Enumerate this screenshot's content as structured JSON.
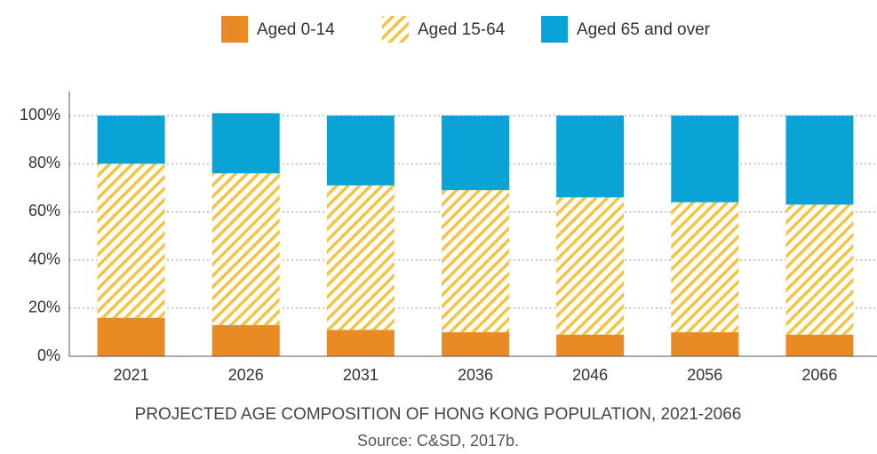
{
  "chart_data": {
    "type": "stacked_bar",
    "title": "PROJECTED AGE COMPOSITION OF HONG KONG POPULATION, 2021-2066",
    "subtitle": "Source: C&SD, 2017b.",
    "categories": [
      "2021",
      "2026",
      "2031",
      "2036",
      "2046",
      "2056",
      "2066"
    ],
    "series": [
      {
        "name": "Aged 0-14",
        "color": "#e98a24",
        "values": [
          16,
          13,
          11,
          10,
          9,
          10,
          9
        ]
      },
      {
        "name": "Aged 15-64",
        "color": "#f5c342",
        "pattern": "hatch",
        "values": [
          64,
          63,
          60,
          59,
          57,
          54,
          54
        ]
      },
      {
        "name": "Aged 65 and over",
        "color": "#0aa3d6",
        "values": [
          20,
          25,
          29,
          31,
          34,
          36,
          37
        ]
      }
    ],
    "ylim": [
      0,
      110
    ],
    "yticks": [
      {
        "value": 0,
        "label": "0%"
      },
      {
        "value": 20,
        "label": "20%"
      },
      {
        "value": 40,
        "label": "40%"
      },
      {
        "value": 60,
        "label": "60%"
      },
      {
        "value": 80,
        "label": "80%"
      },
      {
        "value": 100,
        "label": "100%"
      }
    ],
    "grid": true,
    "legend": "top"
  }
}
